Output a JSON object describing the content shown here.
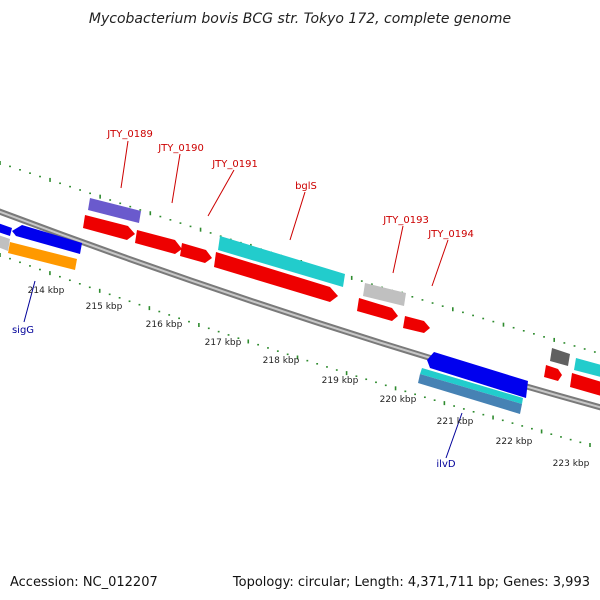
{
  "title": "Mycobacterium bovis BCG str. Tokyo 172, complete genome",
  "footer": {
    "accession": "Accession: NC_012207",
    "topology": "Topology: circular; Length: 4,371,711 bp; Genes: 3,993"
  },
  "kbp_labels": [
    "214 kbp",
    "215 kbp",
    "216 kbp",
    "217 kbp",
    "218 kbp",
    "219 kbp",
    "220 kbp",
    "221 kbp",
    "222 kbp",
    "223 kbp"
  ],
  "gene_labels_top": [
    "JTY_0189",
    "JTY_0190",
    "JTY_0191",
    "bglS",
    "JTY_0193",
    "JTY_0194"
  ],
  "gene_labels_bottom": [
    "sigG",
    "ilvD"
  ],
  "colors": {
    "backbone": "#808080",
    "tick": "#2e8b2e",
    "red_gene": "#ee0000",
    "blue_gene": "#0000ee",
    "cyan_gene": "#22cccc",
    "orange_gene": "#ff9900",
    "purple_gene": "#6a5acd",
    "gray_gene": "#c0c0c0",
    "dark_gene": "#606060",
    "steel_gene": "#4682b4",
    "label_red": "#cc0000",
    "label_blue": "#000099"
  }
}
